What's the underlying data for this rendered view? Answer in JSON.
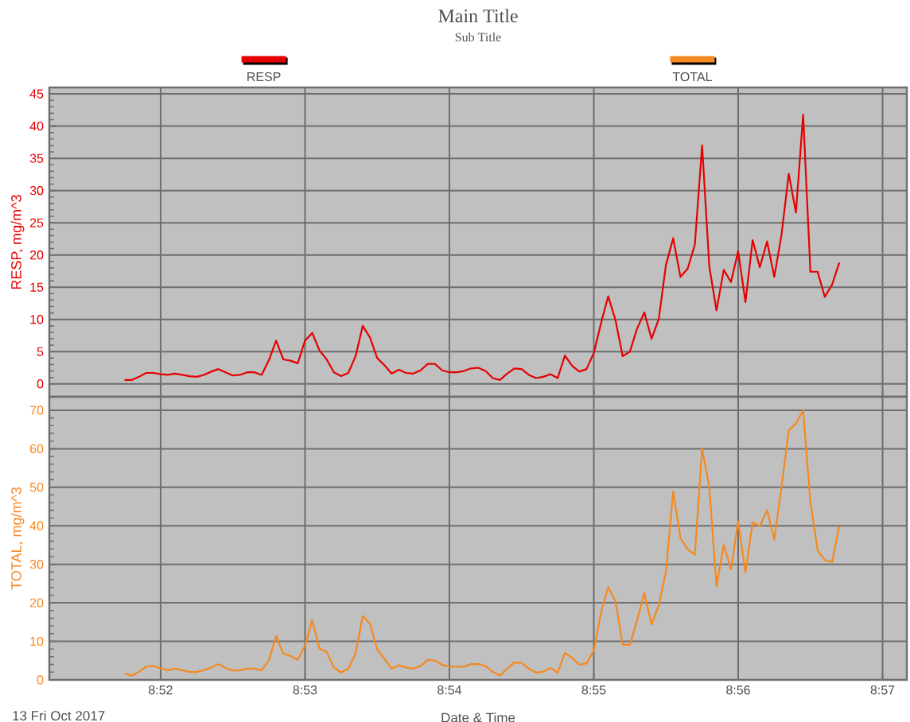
{
  "chart_data": [
    {
      "type": "line",
      "title": "Main Title",
      "subtitle": "Sub Title",
      "ylabel": "RESP, mg/m^3",
      "x": [
        8.8625,
        8.86333,
        8.86417,
        8.865,
        8.86583,
        8.86667,
        8.8675,
        8.86833,
        8.86917,
        8.87,
        8.87083,
        8.87167,
        8.8725,
        8.87333,
        8.87417,
        8.875,
        8.87583,
        8.87667,
        8.8775,
        8.87833,
        8.87917,
        8.88,
        8.88083,
        8.88167,
        8.8825,
        8.88333,
        8.88417,
        8.885,
        8.88583,
        8.88667,
        8.8875,
        8.88833,
        8.88917,
        8.89,
        8.89083,
        8.89167,
        8.8925,
        8.89333,
        8.89417,
        8.895,
        8.89583,
        8.89667,
        8.8975,
        8.89833,
        8.89917,
        8.9,
        8.90083,
        8.90167,
        8.9025,
        8.90333,
        8.90417,
        8.905,
        8.90583,
        8.90667,
        8.9075,
        8.90833,
        8.90917,
        8.91,
        8.91083,
        8.91167,
        8.9125,
        8.91333,
        8.91417,
        8.915,
        8.91583,
        8.91667,
        8.9175,
        8.91833,
        8.91917,
        8.92,
        8.92083,
        8.92167,
        8.9225,
        8.92333,
        8.92417,
        8.925,
        8.92583,
        8.92667,
        8.9275,
        8.92833,
        8.92917,
        8.93,
        8.93083,
        8.93167,
        8.9325,
        8.93333,
        8.93417,
        8.935,
        8.93583,
        8.93667,
        8.9375,
        8.93833,
        8.93917,
        8.94,
        8.94083,
        8.94167,
        8.9425,
        8.94333,
        8.94417,
        8.945
      ],
      "series": [
        {
          "name": "RESP",
          "color": "#e60000",
          "values": [
            0.6,
            0.6,
            1.1,
            1.7,
            1.7,
            1.5,
            1.4,
            1.6,
            1.4,
            1.2,
            1.1,
            1.4,
            1.9,
            2.3,
            1.8,
            1.3,
            1.4,
            1.8,
            1.8,
            1.4,
            3.7,
            6.7,
            3.8,
            3.6,
            3.2,
            6.7,
            7.9,
            5.2,
            3.8,
            1.8,
            1.2,
            1.7,
            4.3,
            9.0,
            7.2,
            4.0,
            2.9,
            1.6,
            2.2,
            1.7,
            1.6,
            2.1,
            3.1,
            3.1,
            2.1,
            1.8,
            1.8,
            2.0,
            2.4,
            2.5,
            2.0,
            0.9,
            0.6,
            1.6,
            2.4,
            2.3,
            1.4,
            0.9,
            1.1,
            1.5,
            0.9,
            4.4,
            2.8,
            1.9,
            2.3,
            4.8,
            9.4,
            13.6,
            9.9,
            4.3,
            5.0,
            8.6,
            11.1,
            7.0,
            10.1,
            18.5,
            22.6,
            16.6,
            17.9,
            21.6,
            37.0,
            18.2,
            11.4,
            17.7,
            15.8,
            20.6,
            12.7,
            22.3,
            18.1,
            22.1,
            16.6,
            23.1,
            32.6,
            26.6,
            41.8,
            17.4,
            17.4,
            13.5,
            15.4,
            18.8
          ]
        }
      ],
      "xlim": [
        8.85382,
        8.9528
      ],
      "ylim": [
        -2,
        46
      ],
      "xticks": [
        8.866667,
        8.883333,
        8.9,
        8.916667,
        8.933333,
        8.95
      ],
      "yticks": [
        0,
        5,
        10,
        15,
        20,
        25,
        30,
        35,
        40,
        45
      ],
      "tick_labels": "y",
      "grid": true,
      "legend": "top"
    },
    {
      "type": "line",
      "xlabel": "Date & Time",
      "ylabel": "TOTAL, mg/m^3",
      "annotations": [
        "13 Fri Oct 2017"
      ],
      "x": [
        8.8625,
        8.86333,
        8.86417,
        8.865,
        8.86583,
        8.86667,
        8.8675,
        8.86833,
        8.86917,
        8.87,
        8.87083,
        8.87167,
        8.8725,
        8.87333,
        8.87417,
        8.875,
        8.87583,
        8.87667,
        8.8775,
        8.87833,
        8.87917,
        8.88,
        8.88083,
        8.88167,
        8.8825,
        8.88333,
        8.88417,
        8.885,
        8.88583,
        8.88667,
        8.8875,
        8.88833,
        8.88917,
        8.89,
        8.89083,
        8.89167,
        8.8925,
        8.89333,
        8.89417,
        8.895,
        8.89583,
        8.89667,
        8.8975,
        8.89833,
        8.89917,
        8.9,
        8.90083,
        8.90167,
        8.9025,
        8.90333,
        8.90417,
        8.905,
        8.90583,
        8.90667,
        8.9075,
        8.90833,
        8.90917,
        8.91,
        8.91083,
        8.91167,
        8.9125,
        8.91333,
        8.91417,
        8.915,
        8.91583,
        8.91667,
        8.9175,
        8.91833,
        8.91917,
        8.92,
        8.92083,
        8.92167,
        8.9225,
        8.92333,
        8.92417,
        8.925,
        8.92583,
        8.92667,
        8.9275,
        8.92833,
        8.92917,
        8.93,
        8.93083,
        8.93167,
        8.9325,
        8.93333,
        8.93417,
        8.935,
        8.93583,
        8.93667,
        8.9375,
        8.93833,
        8.93917,
        8.94,
        8.94083,
        8.94167,
        8.9425,
        8.94333,
        8.94417,
        8.945
      ],
      "series": [
        {
          "name": "TOTAL",
          "color": "#f5891f",
          "values": [
            1.6,
            1.1,
            2.1,
            3.4,
            3.6,
            3.0,
            2.5,
            2.9,
            2.5,
            2.1,
            2.0,
            2.5,
            3.2,
            4.1,
            3.1,
            2.4,
            2.5,
            2.9,
            2.9,
            2.5,
            5.1,
            11.4,
            6.8,
            6.2,
            5.2,
            8.9,
            15.5,
            8.1,
            7.3,
            3.2,
            1.9,
            2.9,
            6.8,
            16.6,
            14.6,
            7.9,
            5.5,
            2.9,
            3.8,
            3.2,
            2.9,
            3.6,
            5.2,
            5.0,
            3.9,
            3.4,
            3.4,
            3.4,
            4.1,
            4.1,
            3.6,
            2.1,
            1.1,
            2.9,
            4.5,
            4.4,
            2.9,
            1.9,
            2.1,
            3.1,
            1.9,
            7.0,
            5.7,
            3.9,
            4.3,
            7.6,
            17.5,
            24.1,
            20.4,
            9.1,
            9.1,
            15.5,
            22.5,
            14.4,
            19.3,
            28.2,
            48.9,
            36.8,
            33.9,
            32.5,
            60.0,
            50.0,
            24.3,
            35.0,
            28.7,
            41.1,
            27.9,
            40.9,
            39.9,
            44.1,
            36.4,
            50.0,
            64.8,
            66.6,
            70.0,
            46.1,
            33.6,
            31.1,
            30.6,
            39.9
          ]
        }
      ],
      "xlim": [
        8.85382,
        8.9528
      ],
      "ylim": [
        0,
        73.5
      ],
      "xticks": [
        {
          "value": 8.866667,
          "label": "8:52"
        },
        {
          "value": 8.883333,
          "label": "8:53"
        },
        {
          "value": 8.9,
          "label": "8:54"
        },
        {
          "value": 8.916667,
          "label": "8:55"
        },
        {
          "value": 8.933333,
          "label": "8:56"
        },
        {
          "value": 8.95,
          "label": "8:57"
        }
      ],
      "yticks": [
        0,
        10,
        20,
        30,
        40,
        50,
        60,
        70
      ],
      "grid": true,
      "legend": "top"
    }
  ]
}
